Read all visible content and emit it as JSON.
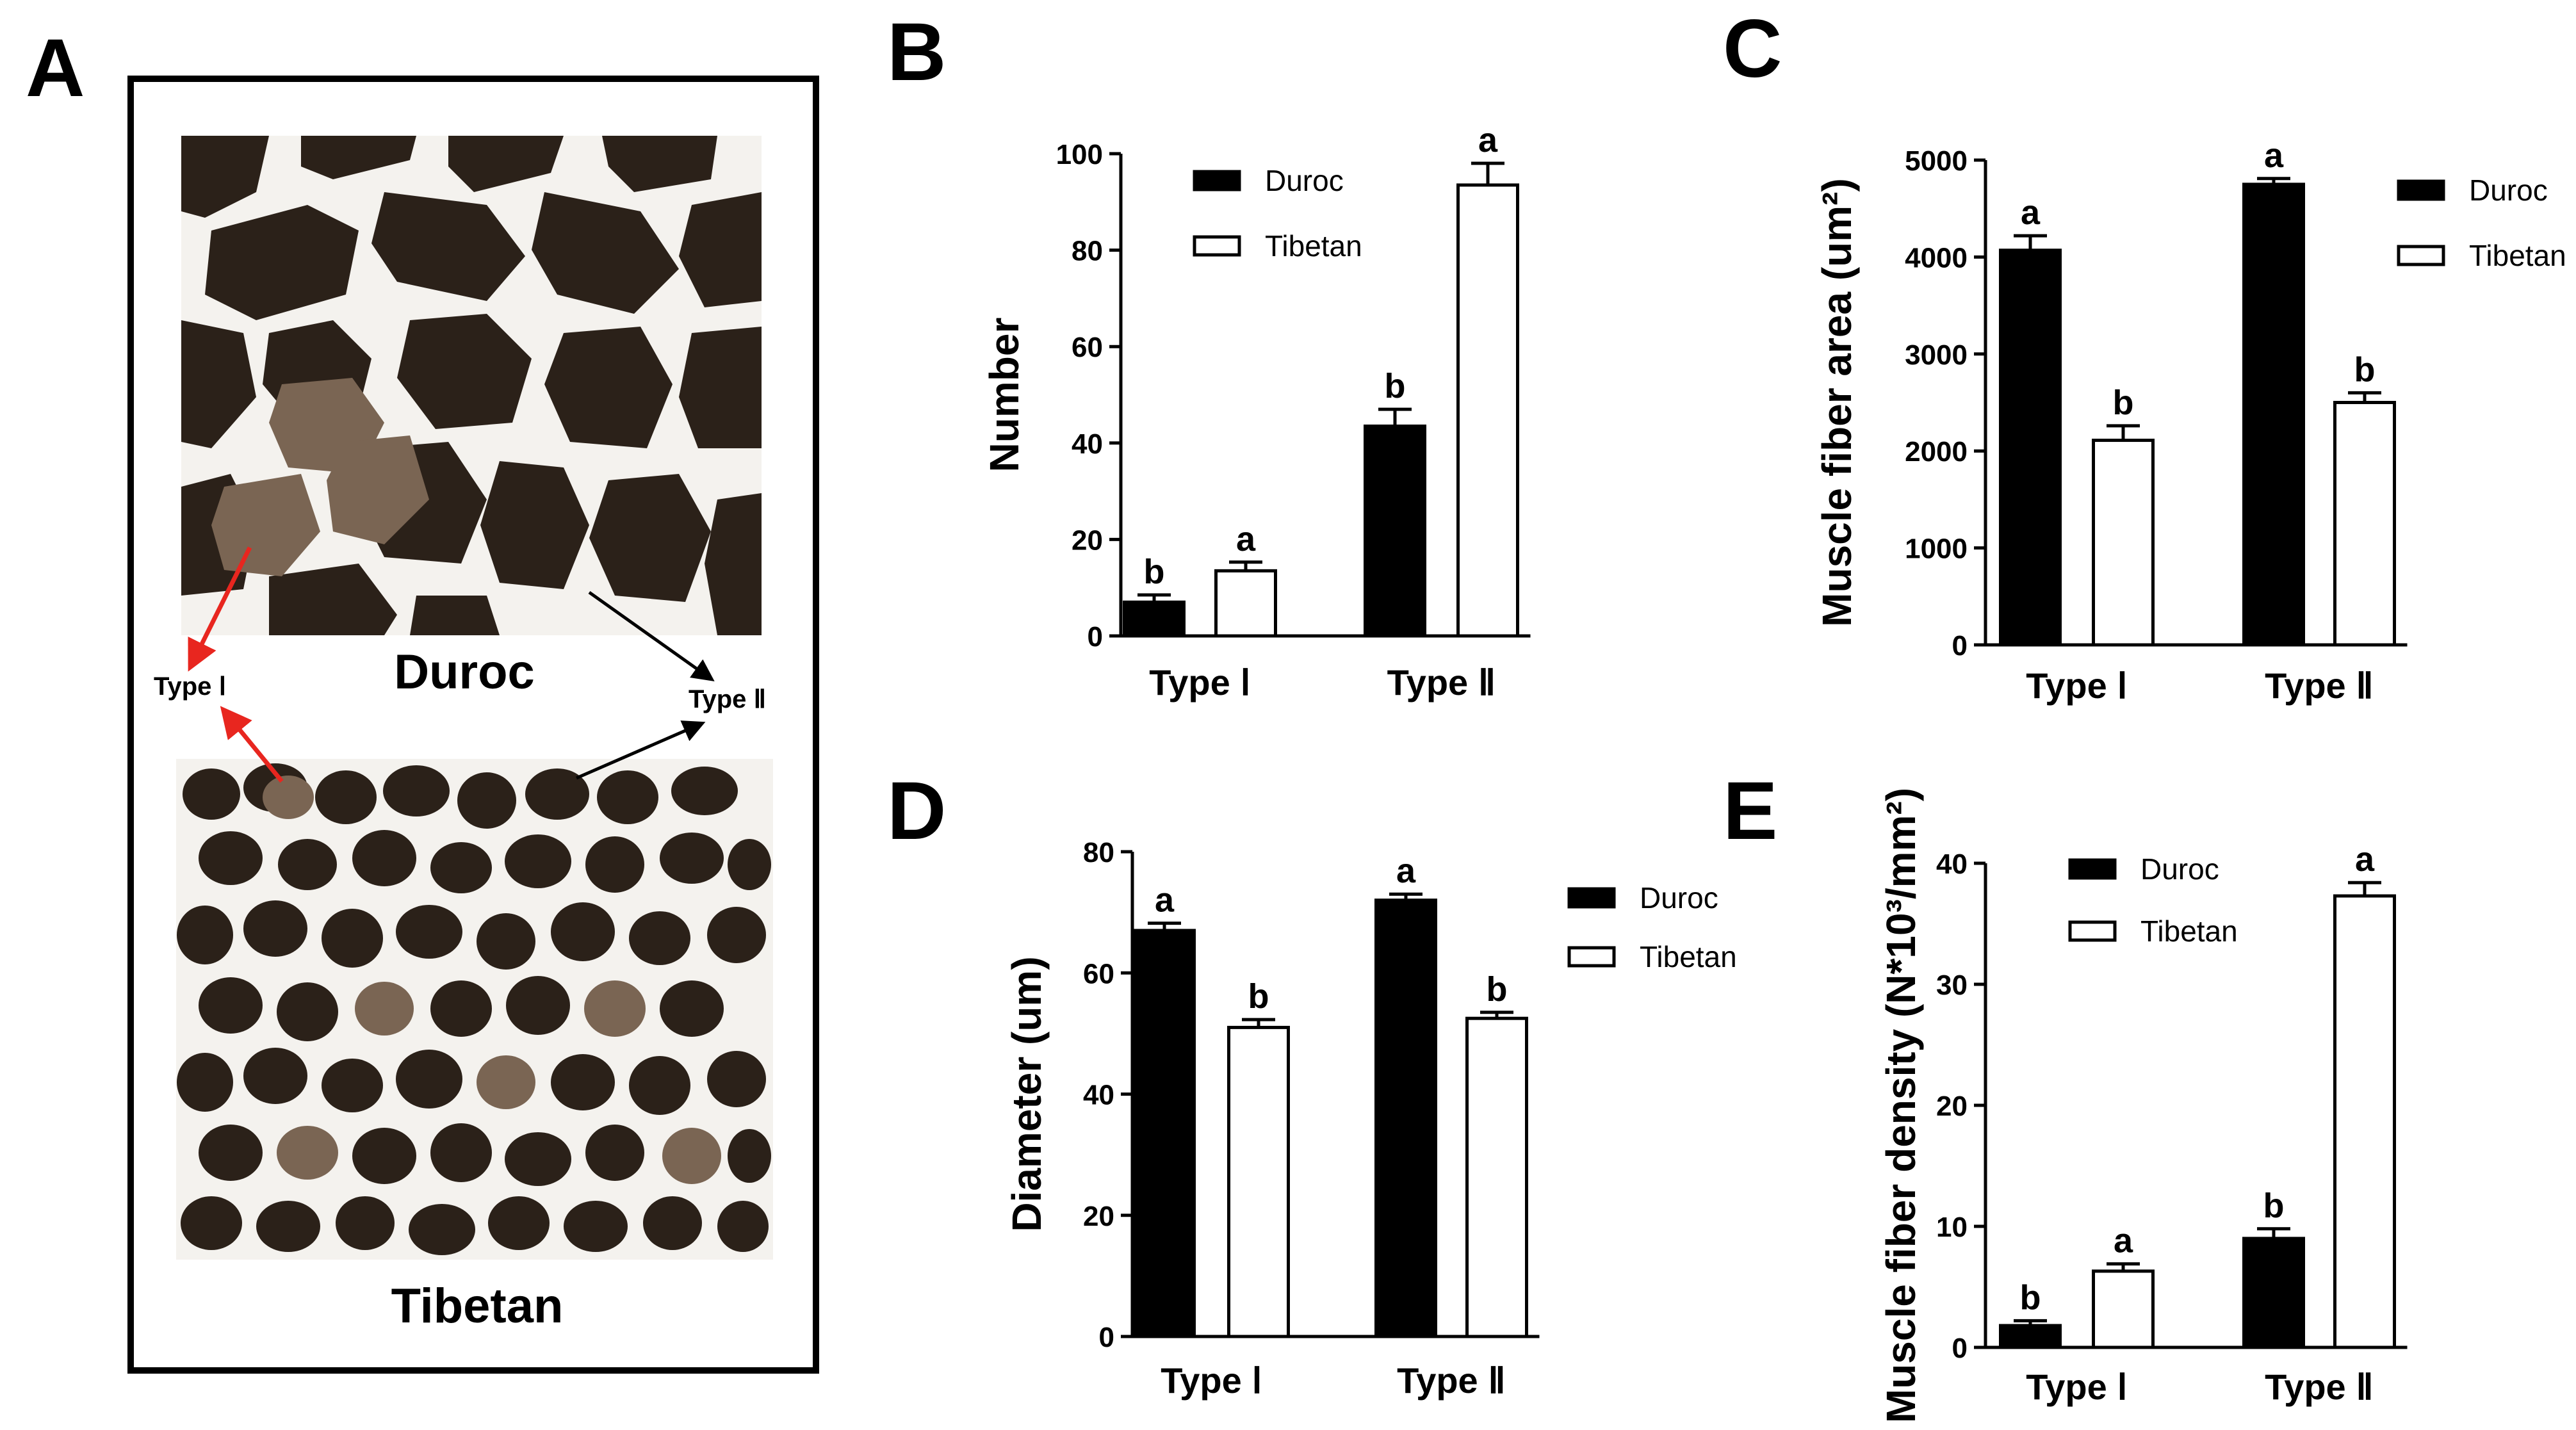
{
  "panel_a": {
    "letter": "A",
    "top_label": "Duroc",
    "bottom_label": "Tibetan",
    "type1_label": "Type Ⅰ",
    "type2_label": "Type Ⅱ",
    "colors": {
      "fiber_dark": "#2b2119",
      "fiber_light": "#7a6553",
      "background": "#f4f2ee",
      "arrow_red": "#e8261f",
      "arrow_black": "#000000"
    }
  },
  "colors": {
    "duroc": "#000000",
    "tibetan": "#ffffff",
    "stroke": "#000000"
  },
  "chart_data": [
    {
      "id": "B",
      "letter": "B",
      "type": "bar",
      "ylabel": "Number",
      "ylim": [
        0,
        100
      ],
      "yticks": [
        0,
        20,
        40,
        60,
        80,
        100
      ],
      "categories": [
        "Type Ⅰ",
        "Type Ⅱ"
      ],
      "series": [
        {
          "name": "Duroc",
          "values": [
            7,
            43.5
          ],
          "errors": [
            1.5,
            3.5
          ],
          "sig": [
            "b",
            "b"
          ]
        },
        {
          "name": "Tibetan",
          "values": [
            13.5,
            93.5
          ],
          "errors": [
            1.8,
            4.5
          ],
          "sig": [
            "a",
            "a"
          ]
        }
      ],
      "legend_position": "top-left"
    },
    {
      "id": "C",
      "letter": "C",
      "type": "bar",
      "ylabel": "Muscle fiber area (um²)",
      "ylim": [
        0,
        5000
      ],
      "yticks": [
        0,
        1000,
        2000,
        3000,
        4000,
        5000
      ],
      "categories": [
        "Type Ⅰ",
        "Type Ⅱ"
      ],
      "series": [
        {
          "name": "Duroc",
          "values": [
            4070,
            4750
          ],
          "errors": [
            150,
            60
          ],
          "sig": [
            "a",
            "a"
          ]
        },
        {
          "name": "Tibetan",
          "values": [
            2110,
            2500
          ],
          "errors": [
            150,
            100
          ],
          "sig": [
            "b",
            "b"
          ]
        }
      ],
      "legend_position": "right"
    },
    {
      "id": "D",
      "letter": "D",
      "type": "bar",
      "ylabel": "Diameter (um)",
      "ylim": [
        0,
        80
      ],
      "yticks": [
        0,
        20,
        40,
        60,
        80
      ],
      "categories": [
        "Type Ⅰ",
        "Type Ⅱ"
      ],
      "series": [
        {
          "name": "Duroc",
          "values": [
            67,
            72
          ],
          "errors": [
            1.2,
            1.0
          ],
          "sig": [
            "a",
            "a"
          ]
        },
        {
          "name": "Tibetan",
          "values": [
            51,
            52.5
          ],
          "errors": [
            1.3,
            1.0
          ],
          "sig": [
            "b",
            "b"
          ]
        }
      ],
      "legend_position": "right"
    },
    {
      "id": "E",
      "letter": "E",
      "type": "bar",
      "ylabel": "Muscle fiber density (N*10³/mm²)",
      "ylim": [
        0,
        40
      ],
      "yticks": [
        0,
        10,
        20,
        30,
        40
      ],
      "categories": [
        "Type Ⅰ",
        "Type Ⅱ"
      ],
      "series": [
        {
          "name": "Duroc",
          "values": [
            1.8,
            9.0
          ],
          "errors": [
            0.4,
            0.8
          ],
          "sig": [
            "b",
            "b"
          ]
        },
        {
          "name": "Tibetan",
          "values": [
            6.3,
            37.3
          ],
          "errors": [
            0.6,
            1.1
          ],
          "sig": [
            "a",
            "a"
          ]
        }
      ],
      "legend_position": "top-left"
    }
  ]
}
